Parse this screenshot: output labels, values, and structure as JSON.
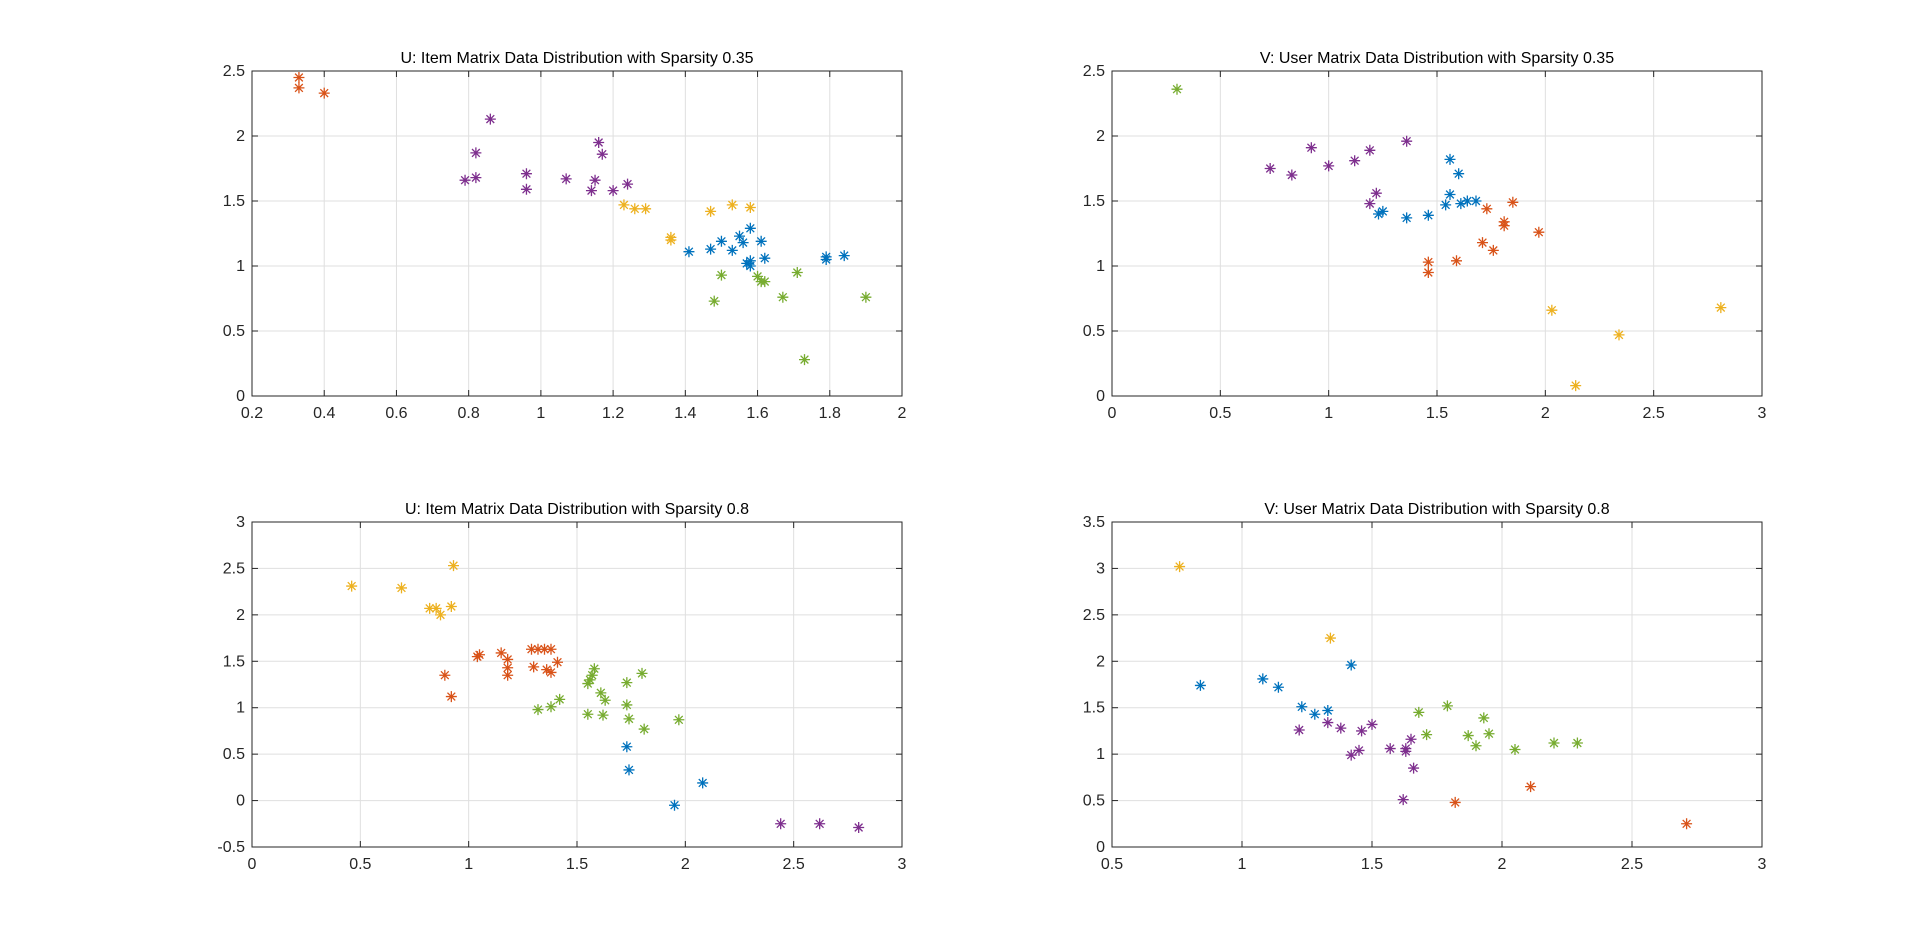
{
  "colors": {
    "blue": "#0072BD",
    "orange": "#D95319",
    "yellow": "#EDB120",
    "purple": "#7E2F8E",
    "green": "#77AC30"
  },
  "chart_data": [
    {
      "type": "scatter",
      "title": "U: Item Matrix Data Distribution with Sparsity 0.35",
      "xlim": [
        0.2,
        2
      ],
      "ylim": [
        0,
        2.5
      ],
      "xticks": [
        0.2,
        0.4,
        0.6,
        0.8,
        1,
        1.2,
        1.4,
        1.6,
        1.8,
        2
      ],
      "xtick_labels": [
        "0.2",
        "0.4",
        "0.6",
        "0.8",
        "1",
        "1.2",
        "1.4",
        "1.6",
        "1.8",
        "2"
      ],
      "yticks": [
        0,
        0.5,
        1,
        1.5,
        2,
        2.5
      ],
      "ytick_labels": [
        "0",
        "0.5",
        "1",
        "1.5",
        "2",
        "2.5"
      ],
      "grid": true,
      "marker": "*",
      "series": [
        {
          "color": "orange",
          "points": [
            [
              0.33,
              2.45
            ],
            [
              0.33,
              2.37
            ],
            [
              0.4,
              2.33
            ]
          ]
        },
        {
          "color": "purple",
          "points": [
            [
              0.86,
              2.13
            ],
            [
              0.82,
              1.87
            ],
            [
              0.82,
              1.68
            ],
            [
              0.79,
              1.66
            ],
            [
              0.96,
              1.71
            ],
            [
              0.96,
              1.59
            ],
            [
              1.07,
              1.67
            ],
            [
              1.16,
              1.95
            ],
            [
              1.17,
              1.86
            ],
            [
              1.15,
              1.66
            ],
            [
              1.14,
              1.58
            ],
            [
              1.2,
              1.58
            ],
            [
              1.24,
              1.63
            ]
          ]
        },
        {
          "color": "yellow",
          "points": [
            [
              1.23,
              1.47
            ],
            [
              1.26,
              1.44
            ],
            [
              1.29,
              1.44
            ],
            [
              1.36,
              1.22
            ],
            [
              1.36,
              1.2
            ],
            [
              1.47,
              1.42
            ],
            [
              1.53,
              1.47
            ],
            [
              1.58,
              1.45
            ]
          ]
        },
        {
          "color": "blue",
          "points": [
            [
              1.41,
              1.11
            ],
            [
              1.47,
              1.13
            ],
            [
              1.5,
              1.19
            ],
            [
              1.53,
              1.12
            ],
            [
              1.55,
              1.23
            ],
            [
              1.56,
              1.18
            ],
            [
              1.58,
              1.29
            ],
            [
              1.57,
              1.02
            ],
            [
              1.58,
              1.04
            ],
            [
              1.58,
              1.0
            ],
            [
              1.61,
              1.19
            ],
            [
              1.62,
              1.06
            ],
            [
              1.79,
              1.07
            ],
            [
              1.79,
              1.05
            ],
            [
              1.84,
              1.08
            ]
          ]
        },
        {
          "color": "green",
          "points": [
            [
              1.5,
              0.93
            ],
            [
              1.48,
              0.73
            ],
            [
              1.6,
              0.92
            ],
            [
              1.61,
              0.88
            ],
            [
              1.62,
              0.88
            ],
            [
              1.67,
              0.76
            ],
            [
              1.71,
              0.95
            ],
            [
              1.73,
              0.28
            ],
            [
              1.9,
              0.76
            ]
          ]
        }
      ]
    },
    {
      "type": "scatter",
      "title": "V: User Matrix Data Distribution with Sparsity 0.35",
      "xlim": [
        0,
        3
      ],
      "ylim": [
        0,
        2.5
      ],
      "xticks": [
        0,
        0.5,
        1,
        1.5,
        2,
        2.5,
        3
      ],
      "xtick_labels": [
        "0",
        "0.5",
        "1",
        "1.5",
        "2",
        "2.5",
        "3"
      ],
      "yticks": [
        0,
        0.5,
        1,
        1.5,
        2,
        2.5
      ],
      "ytick_labels": [
        "0",
        "0.5",
        "1",
        "1.5",
        "2",
        "2.5"
      ],
      "grid": true,
      "marker": "*",
      "series": [
        {
          "color": "green",
          "points": [
            [
              0.3,
              2.36
            ]
          ]
        },
        {
          "color": "purple",
          "points": [
            [
              0.73,
              1.75
            ],
            [
              0.83,
              1.7
            ],
            [
              0.92,
              1.91
            ],
            [
              1.0,
              1.77
            ],
            [
              1.12,
              1.81
            ],
            [
              1.19,
              1.89
            ],
            [
              1.36,
              1.96
            ],
            [
              1.19,
              1.48
            ],
            [
              1.22,
              1.56
            ]
          ]
        },
        {
          "color": "blue",
          "points": [
            [
              1.23,
              1.4
            ],
            [
              1.25,
              1.42
            ],
            [
              1.36,
              1.37
            ],
            [
              1.46,
              1.39
            ],
            [
              1.54,
              1.47
            ],
            [
              1.56,
              1.55
            ],
            [
              1.56,
              1.82
            ],
            [
              1.6,
              1.71
            ],
            [
              1.61,
              1.48
            ],
            [
              1.64,
              1.5
            ],
            [
              1.68,
              1.5
            ]
          ]
        },
        {
          "color": "orange",
          "points": [
            [
              1.46,
              1.03
            ],
            [
              1.46,
              0.95
            ],
            [
              1.59,
              1.04
            ],
            [
              1.71,
              1.18
            ],
            [
              1.73,
              1.44
            ],
            [
              1.76,
              1.12
            ],
            [
              1.81,
              1.34
            ],
            [
              1.81,
              1.31
            ],
            [
              1.85,
              1.49
            ],
            [
              1.97,
              1.26
            ]
          ]
        },
        {
          "color": "yellow",
          "points": [
            [
              2.03,
              0.66
            ],
            [
              2.14,
              0.08
            ],
            [
              2.34,
              0.47
            ],
            [
              2.81,
              0.68
            ]
          ]
        }
      ]
    },
    {
      "type": "scatter",
      "title": "U: Item Matrix Data Distribution with Sparsity 0.8",
      "xlim": [
        0,
        3
      ],
      "ylim": [
        -0.5,
        3
      ],
      "xticks": [
        0,
        0.5,
        1,
        1.5,
        2,
        2.5,
        3
      ],
      "xtick_labels": [
        "0",
        "0.5",
        "1",
        "1.5",
        "2",
        "2.5",
        "3"
      ],
      "yticks": [
        -0.5,
        0,
        0.5,
        1,
        1.5,
        2,
        2.5,
        3
      ],
      "ytick_labels": [
        "-0.5",
        "0",
        "0.5",
        "1",
        "1.5",
        "2",
        "2.5",
        "3"
      ],
      "grid": true,
      "marker": "*",
      "series": [
        {
          "color": "yellow",
          "points": [
            [
              0.46,
              2.31
            ],
            [
              0.69,
              2.29
            ],
            [
              0.82,
              2.07
            ],
            [
              0.85,
              2.07
            ],
            [
              0.87,
              2.0
            ],
            [
              0.92,
              2.09
            ],
            [
              0.93,
              2.53
            ]
          ]
        },
        {
          "color": "orange",
          "points": [
            [
              0.89,
              1.35
            ],
            [
              0.92,
              1.12
            ],
            [
              1.04,
              1.55
            ],
            [
              1.05,
              1.57
            ],
            [
              1.15,
              1.59
            ],
            [
              1.18,
              1.52
            ],
            [
              1.18,
              1.43
            ],
            [
              1.18,
              1.35
            ],
            [
              1.29,
              1.63
            ],
            [
              1.32,
              1.63
            ],
            [
              1.35,
              1.63
            ],
            [
              1.38,
              1.63
            ],
            [
              1.3,
              1.44
            ],
            [
              1.36,
              1.41
            ],
            [
              1.38,
              1.38
            ],
            [
              1.41,
              1.49
            ]
          ]
        },
        {
          "color": "green",
          "points": [
            [
              1.32,
              0.98
            ],
            [
              1.38,
              1.01
            ],
            [
              1.42,
              1.09
            ],
            [
              1.55,
              1.26
            ],
            [
              1.56,
              1.3
            ],
            [
              1.57,
              1.35
            ],
            [
              1.58,
              1.42
            ],
            [
              1.55,
              0.93
            ],
            [
              1.61,
              1.16
            ],
            [
              1.63,
              1.08
            ],
            [
              1.62,
              0.92
            ],
            [
              1.73,
              1.27
            ],
            [
              1.73,
              1.03
            ],
            [
              1.74,
              0.88
            ],
            [
              1.8,
              1.37
            ],
            [
              1.81,
              0.77
            ],
            [
              1.97,
              0.87
            ]
          ]
        },
        {
          "color": "blue",
          "points": [
            [
              1.73,
              0.58
            ],
            [
              1.74,
              0.33
            ],
            [
              1.95,
              -0.05
            ],
            [
              2.08,
              0.19
            ]
          ]
        },
        {
          "color": "purple",
          "points": [
            [
              2.44,
              -0.25
            ],
            [
              2.62,
              -0.25
            ],
            [
              2.8,
              -0.29
            ]
          ]
        }
      ]
    },
    {
      "type": "scatter",
      "title": "V: User Matrix Data Distribution with Sparsity 0.8",
      "xlim": [
        0.5,
        3
      ],
      "ylim": [
        0,
        3.5
      ],
      "xticks": [
        0.5,
        1,
        1.5,
        2,
        2.5,
        3
      ],
      "xtick_labels": [
        "0.5",
        "1",
        "1.5",
        "2",
        "2.5",
        "3"
      ],
      "yticks": [
        0,
        0.5,
        1,
        1.5,
        2,
        2.5,
        3,
        3.5
      ],
      "ytick_labels": [
        "0",
        "0.5",
        "1",
        "1.5",
        "2",
        "2.5",
        "3",
        "3.5"
      ],
      "grid": true,
      "marker": "*",
      "series": [
        {
          "color": "yellow",
          "points": [
            [
              0.76,
              3.02
            ],
            [
              1.34,
              2.25
            ]
          ]
        },
        {
          "color": "blue",
          "points": [
            [
              0.84,
              1.74
            ],
            [
              1.08,
              1.81
            ],
            [
              1.14,
              1.72
            ],
            [
              1.23,
              1.51
            ],
            [
              1.28,
              1.43
            ],
            [
              1.33,
              1.47
            ],
            [
              1.42,
              1.96
            ]
          ]
        },
        {
          "color": "purple",
          "points": [
            [
              1.22,
              1.26
            ],
            [
              1.33,
              1.34
            ],
            [
              1.38,
              1.28
            ],
            [
              1.42,
              0.99
            ],
            [
              1.45,
              1.04
            ],
            [
              1.46,
              1.25
            ],
            [
              1.5,
              1.32
            ],
            [
              1.57,
              1.06
            ],
            [
              1.63,
              1.06
            ],
            [
              1.63,
              1.03
            ],
            [
              1.65,
              1.16
            ],
            [
              1.66,
              0.85
            ],
            [
              1.62,
              0.51
            ]
          ]
        },
        {
          "color": "green",
          "points": [
            [
              1.68,
              1.45
            ],
            [
              1.71,
              1.21
            ],
            [
              1.79,
              1.52
            ],
            [
              1.87,
              1.2
            ],
            [
              1.9,
              1.09
            ],
            [
              1.93,
              1.39
            ],
            [
              1.95,
              1.22
            ],
            [
              2.05,
              1.05
            ],
            [
              2.2,
              1.12
            ],
            [
              2.29,
              1.12
            ]
          ]
        },
        {
          "color": "orange",
          "points": [
            [
              1.82,
              0.48
            ],
            [
              2.11,
              0.65
            ],
            [
              2.71,
              0.25
            ]
          ]
        }
      ]
    }
  ]
}
